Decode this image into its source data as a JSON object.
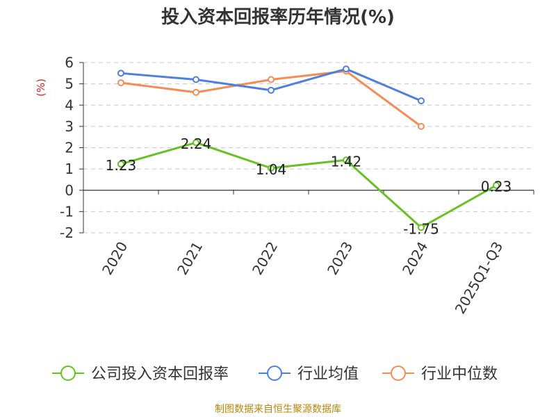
{
  "title": "投入资本回报率历年情况(%)",
  "source": "制图数据来自恒生聚源数据库",
  "colors": {
    "company": "#66c223",
    "industry_avg": "#4f7fdc",
    "industry_median": "#f58b57",
    "ylabel": "#e02020",
    "grid": "#c8c8c8",
    "axis": "#333333"
  },
  "chart_data": {
    "type": "line",
    "title": "投入资本回报率历年情况(%)",
    "ylabel": "(%)",
    "xlabel": "",
    "categories": [
      "2020",
      "2021",
      "2022",
      "2023",
      "2024",
      "2025Q1-Q3"
    ],
    "ylim": [
      -2,
      6
    ],
    "yticks": [
      -2,
      -1,
      0,
      1,
      2,
      3,
      4,
      5,
      6
    ],
    "grid": true,
    "legend_position": "bottom",
    "series": [
      {
        "name": "公司投入资本回报率",
        "color": "#66c223",
        "show_labels": true,
        "labels": [
          "1.23",
          "2.24",
          "1.04",
          "1.42",
          "-1.75",
          "0.23"
        ],
        "values": [
          1.23,
          2.24,
          1.04,
          1.42,
          -1.75,
          0.23
        ]
      },
      {
        "name": "行业均值",
        "color": "#4f7fdc",
        "show_labels": false,
        "values": [
          5.5,
          5.2,
          4.7,
          5.7,
          4.2,
          null
        ]
      },
      {
        "name": "行业中位数",
        "color": "#f58b57",
        "show_labels": false,
        "values": [
          5.05,
          4.6,
          5.2,
          5.6,
          3.0,
          null
        ]
      }
    ]
  }
}
